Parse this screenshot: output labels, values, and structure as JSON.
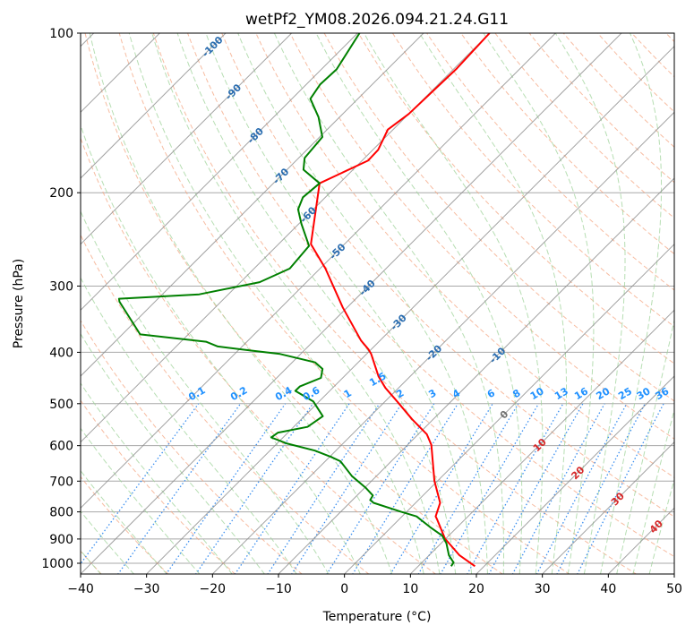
{
  "chart_data": {
    "type": "line",
    "subtype": "skew-t log-p diagram",
    "title": "wetPf2_YM08.2026.094.21.24.G11",
    "xlabel": "Temperature (°C)",
    "ylabel": "Pressure (hPa)",
    "xlim": [
      -40,
      50
    ],
    "ylim": [
      1050,
      100
    ],
    "x_ticks": [
      "−40",
      "−30",
      "−20",
      "−10",
      "0",
      "10",
      "20",
      "30",
      "40",
      "50"
    ],
    "x_tick_values": [
      -40,
      -30,
      -20,
      -10,
      0,
      10,
      20,
      30,
      40,
      50
    ],
    "y_ticks": [
      "100",
      "200",
      "300",
      "400",
      "500",
      "600",
      "700",
      "800",
      "900",
      "1000"
    ],
    "y_tick_values": [
      100,
      200,
      300,
      400,
      500,
      600,
      700,
      800,
      900,
      1000
    ],
    "grid": true,
    "isotherm_labels": [
      "-100",
      "-90",
      "-80",
      "-70",
      "-60",
      "-50",
      "-40",
      "-30",
      "-20",
      "-10",
      "0",
      "10",
      "20",
      "30",
      "40"
    ],
    "isotherm_label_values": [
      -100,
      -90,
      -80,
      -70,
      -60,
      -50,
      -40,
      -30,
      -20,
      -10,
      0,
      10,
      20,
      30,
      40
    ],
    "mixing_ratio_labels": [
      "0.1",
      "0.2",
      "0.4",
      "0.6",
      "1",
      "1.5",
      "2",
      "3",
      "4",
      "6",
      "8",
      "10",
      "13",
      "16",
      "20",
      "25",
      "30",
      "36"
    ],
    "mixing_ratio_values": [
      0.1,
      0.2,
      0.4,
      0.6,
      1,
      1.5,
      2,
      3,
      4,
      6,
      8,
      10,
      13,
      16,
      20,
      25,
      30,
      36
    ],
    "series": [
      {
        "name": "Temperature",
        "color": "#ff0000",
        "pressure": [
          1013,
          966,
          899,
          827,
          816,
          769,
          699,
          598,
          571,
          535,
          495,
          467,
          444,
          403,
          395,
          380,
          329,
          278,
          250,
          192,
          174,
          166,
          152,
          142,
          117,
          100
        ],
        "temperature": [
          18.6,
          14.6,
          9.9,
          5.8,
          5.1,
          3.7,
          -0.5,
          -6.4,
          -8.7,
          -13.2,
          -18.2,
          -22.0,
          -24.8,
          -29.3,
          -30.4,
          -32.9,
          -40.7,
          -49.2,
          -55.1,
          -63.0,
          -59.1,
          -59.2,
          -60.8,
          -60.0,
          -59.6,
          -60.0
        ]
      },
      {
        "name": "Dewpoint",
        "color": "#008000",
        "pressure": [
          1013,
          997,
          966,
          917,
          887,
          854,
          816,
          800,
          769,
          760,
          745,
          721,
          685,
          642,
          630,
          613,
          594,
          579,
          567,
          553,
          528,
          495,
          473,
          464,
          447,
          430,
          418,
          403,
          397,
          390,
          382,
          370,
          321,
          317,
          311,
          295,
          278,
          252,
          229,
          215,
          204,
          192,
          181,
          172,
          157,
          144,
          133,
          125,
          117,
          100
        ],
        "temperature": [
          15.0,
          14.8,
          13.0,
          10.8,
          9.0,
          5.8,
          2.2,
          -0.8,
          -6.4,
          -7.3,
          -7.6,
          -9.8,
          -13.7,
          -17.7,
          -19.8,
          -23.2,
          -28.6,
          -31.8,
          -31.5,
          -27.9,
          -27.2,
          -30.9,
          -35.2,
          -35.2,
          -33.3,
          -34.4,
          -36.5,
          -43.1,
          -48.0,
          -53.7,
          -56.2,
          -67.3,
          -75.4,
          -75.9,
          -64.4,
          -57.1,
          -54.6,
          -55.1,
          -59.6,
          -62.3,
          -63.4,
          -63.0,
          -67.5,
          -69.1,
          -69.6,
          -73.2,
          -77.2,
          -77.9,
          -77.7,
          -79.7
        ]
      }
    ],
    "colors": {
      "isotherm": "#8c8c8c",
      "dry_adiabat": "#f4a582",
      "moist_adiabat": "#9fd39a",
      "mixing_ratio": "#3b8ff0",
      "cold_label": "#2a6db0",
      "zero_label": "#707070",
      "warm_label": "#d62728",
      "mixing_label": "#1e90ff"
    }
  }
}
